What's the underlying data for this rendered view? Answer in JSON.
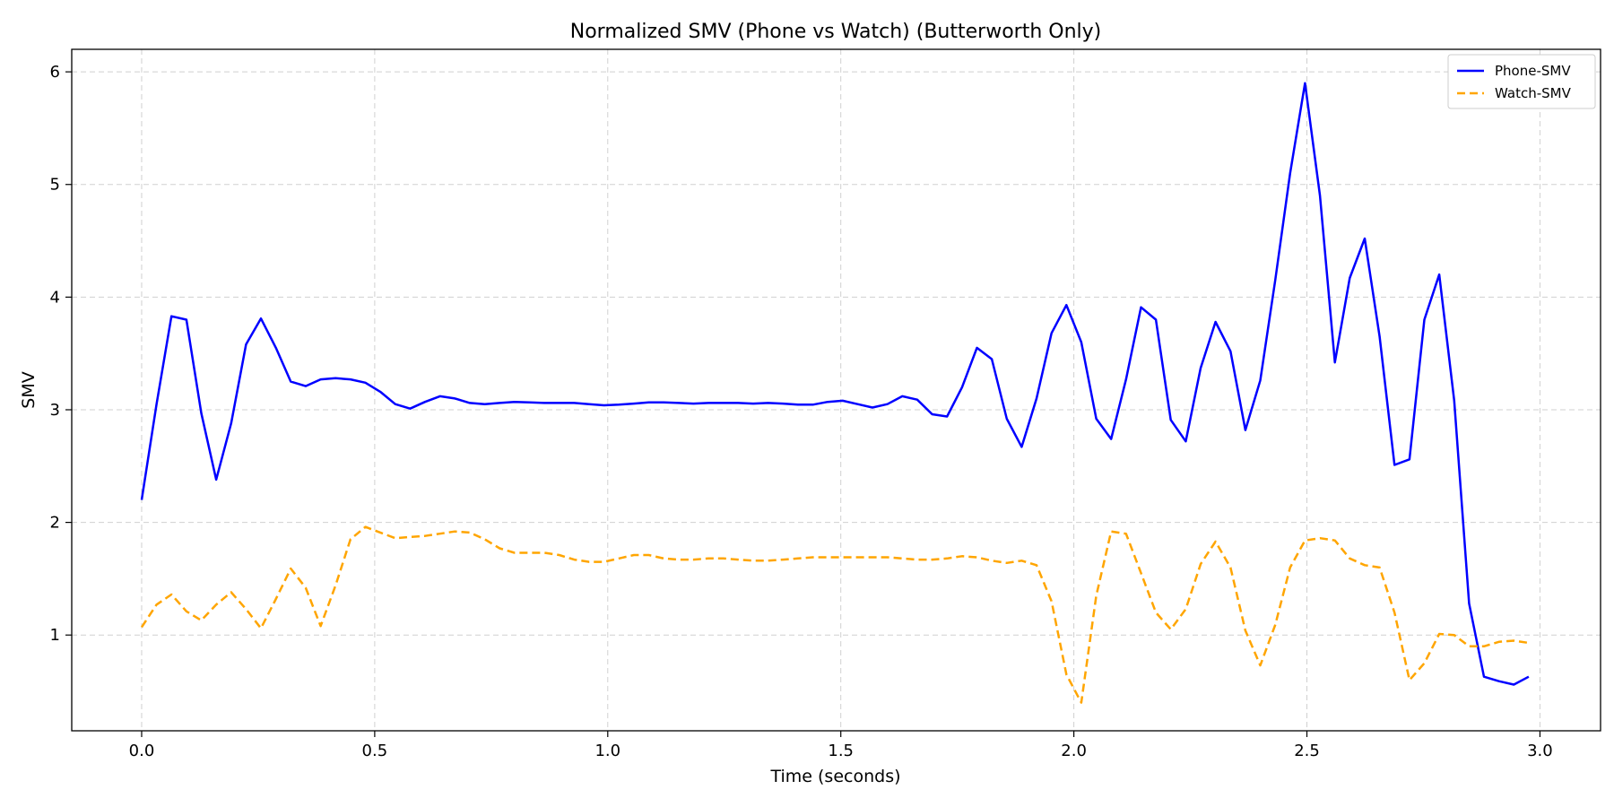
{
  "chart_data": {
    "type": "line",
    "title": "Normalized SMV (Phone vs Watch) (Butterworth Only)",
    "xlabel": "Time (seconds)",
    "ylabel": "SMV",
    "xlim": [
      -0.15,
      3.13
    ],
    "ylim": [
      0.15,
      6.2
    ],
    "xticks": [
      0.0,
      0.5,
      1.0,
      1.5,
      2.0,
      2.5,
      3.0
    ],
    "xtick_labels": [
      "0.0",
      "0.5",
      "1.0",
      "1.5",
      "2.0",
      "2.5",
      "3.0"
    ],
    "yticks": [
      1,
      2,
      3,
      4,
      5,
      6
    ],
    "ytick_labels": [
      "1",
      "2",
      "3",
      "4",
      "5",
      "6"
    ],
    "grid": true,
    "legend_position": "top-right",
    "series": [
      {
        "name": "Phone-SMV",
        "color": "#0000ff",
        "style": "solid",
        "x": [
          0.0,
          0.032,
          0.064,
          0.096,
          0.128,
          0.16,
          0.192,
          0.224,
          0.256,
          0.288,
          0.32,
          0.352,
          0.384,
          0.416,
          0.448,
          0.48,
          0.512,
          0.544,
          0.576,
          0.608,
          0.64,
          0.672,
          0.704,
          0.736,
          0.768,
          0.8,
          0.832,
          0.864,
          0.896,
          0.928,
          0.96,
          0.992,
          1.024,
          1.056,
          1.088,
          1.12,
          1.152,
          1.184,
          1.216,
          1.248,
          1.28,
          1.312,
          1.344,
          1.376,
          1.408,
          1.44,
          1.472,
          1.504,
          1.536,
          1.568,
          1.6,
          1.632,
          1.664,
          1.696,
          1.728,
          1.76,
          1.792,
          1.824,
          1.856,
          1.888,
          1.92,
          1.952,
          1.984,
          2.016,
          2.048,
          2.08,
          2.112,
          2.144,
          2.176,
          2.208,
          2.24,
          2.272,
          2.304,
          2.336,
          2.368,
          2.4,
          2.432,
          2.464,
          2.496,
          2.528,
          2.56,
          2.592,
          2.624,
          2.656,
          2.688,
          2.72,
          2.752,
          2.784,
          2.816,
          2.848,
          2.88,
          2.912,
          2.944,
          2.976
        ],
        "y": [
          2.2,
          3.05,
          3.83,
          3.8,
          2.97,
          2.38,
          2.88,
          3.58,
          3.81,
          3.55,
          3.25,
          3.21,
          3.27,
          3.28,
          3.27,
          3.24,
          3.16,
          3.05,
          3.01,
          3.07,
          3.12,
          3.1,
          3.06,
          3.05,
          3.06,
          3.07,
          3.065,
          3.06,
          3.06,
          3.06,
          3.05,
          3.04,
          3.045,
          3.055,
          3.065,
          3.065,
          3.06,
          3.055,
          3.06,
          3.06,
          3.06,
          3.055,
          3.06,
          3.055,
          3.045,
          3.045,
          3.07,
          3.08,
          3.05,
          3.02,
          3.05,
          3.12,
          3.09,
          2.96,
          2.94,
          3.2,
          3.55,
          3.45,
          2.92,
          2.67,
          3.1,
          3.68,
          3.93,
          3.6,
          2.92,
          2.74,
          3.27,
          3.91,
          3.8,
          2.91,
          2.72,
          3.37,
          3.78,
          3.52,
          2.82,
          3.26,
          4.15,
          5.1,
          5.9,
          4.9,
          3.42,
          4.17,
          4.52,
          3.65,
          2.51,
          2.56,
          3.8,
          4.2,
          3.08,
          1.28,
          0.63,
          0.59,
          0.56,
          0.63
        ]
      },
      {
        "name": "Watch-SMV",
        "color": "#ffa500",
        "style": "dashed",
        "x": [
          0.0,
          0.032,
          0.064,
          0.096,
          0.128,
          0.16,
          0.192,
          0.224,
          0.256,
          0.288,
          0.32,
          0.352,
          0.384,
          0.416,
          0.448,
          0.48,
          0.512,
          0.544,
          0.576,
          0.608,
          0.64,
          0.672,
          0.704,
          0.736,
          0.768,
          0.8,
          0.832,
          0.864,
          0.896,
          0.928,
          0.96,
          0.992,
          1.024,
          1.056,
          1.088,
          1.12,
          1.152,
          1.184,
          1.216,
          1.248,
          1.28,
          1.312,
          1.344,
          1.376,
          1.408,
          1.44,
          1.472,
          1.504,
          1.536,
          1.568,
          1.6,
          1.632,
          1.664,
          1.696,
          1.728,
          1.76,
          1.792,
          1.824,
          1.856,
          1.888,
          1.92,
          1.952,
          1.984,
          2.016,
          2.048,
          2.08,
          2.112,
          2.144,
          2.176,
          2.208,
          2.24,
          2.272,
          2.304,
          2.336,
          2.368,
          2.4,
          2.432,
          2.464,
          2.496,
          2.528,
          2.56,
          2.592,
          2.624,
          2.656,
          2.688,
          2.72,
          2.752,
          2.784,
          2.816,
          2.848,
          2.88,
          2.912,
          2.944,
          2.976
        ],
        "y": [
          1.07,
          1.27,
          1.36,
          1.21,
          1.13,
          1.27,
          1.38,
          1.23,
          1.06,
          1.32,
          1.59,
          1.42,
          1.08,
          1.44,
          1.85,
          1.96,
          1.91,
          1.86,
          1.87,
          1.88,
          1.9,
          1.92,
          1.91,
          1.85,
          1.77,
          1.73,
          1.73,
          1.73,
          1.71,
          1.67,
          1.65,
          1.65,
          1.68,
          1.71,
          1.71,
          1.68,
          1.67,
          1.67,
          1.68,
          1.68,
          1.67,
          1.66,
          1.66,
          1.67,
          1.68,
          1.69,
          1.69,
          1.69,
          1.69,
          1.69,
          1.69,
          1.68,
          1.67,
          1.67,
          1.68,
          1.7,
          1.69,
          1.66,
          1.64,
          1.66,
          1.62,
          1.3,
          0.65,
          0.4,
          1.35,
          1.92,
          1.9,
          1.55,
          1.2,
          1.05,
          1.23,
          1.63,
          1.83,
          1.6,
          1.04,
          0.73,
          1.09,
          1.6,
          1.84,
          1.86,
          1.84,
          1.68,
          1.62,
          1.6,
          1.2,
          0.6,
          0.75,
          1.01,
          1.0,
          0.9,
          0.9,
          0.94,
          0.95,
          0.93
        ]
      }
    ]
  }
}
